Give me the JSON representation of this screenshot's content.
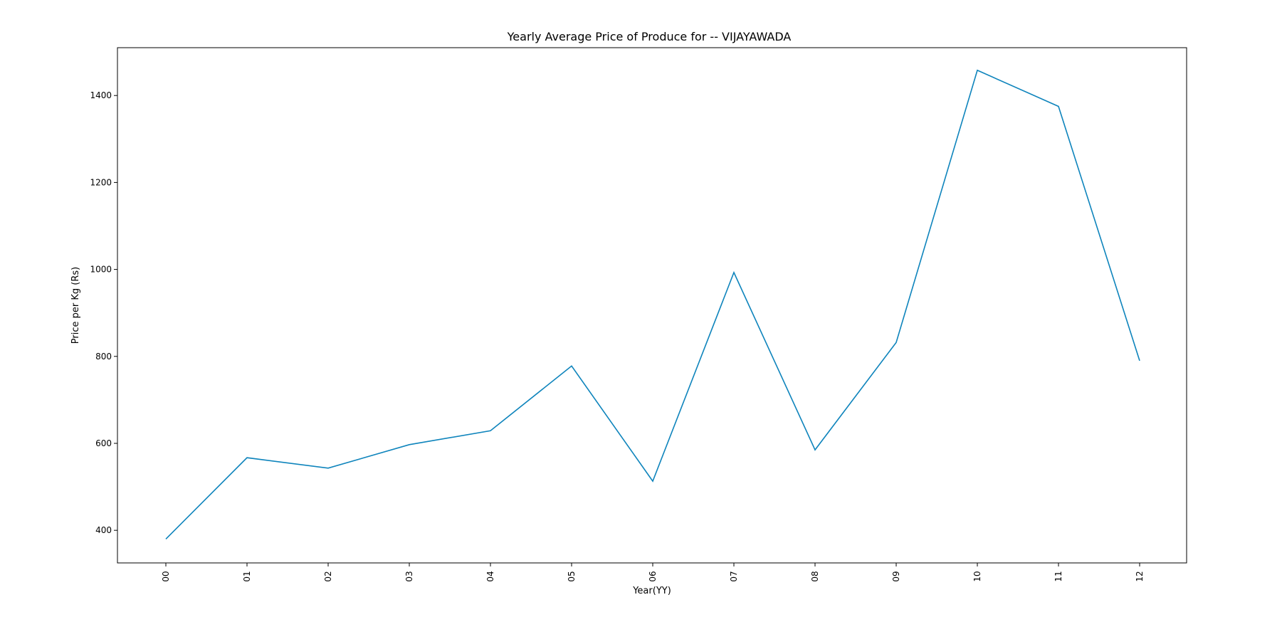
{
  "chart_data": {
    "type": "line",
    "title": "Yearly Average Price of Produce for  --  VIJAYAWADA",
    "xlabel": "Year(YY)",
    "ylabel": "Price per Kg (Rs)",
    "categories": [
      "00",
      "01",
      "02",
      "03",
      "04",
      "05",
      "06",
      "07",
      "08",
      "09",
      "10",
      "11",
      "12"
    ],
    "series": [
      {
        "values": [
          380,
          567,
          543,
          597,
          629,
          778,
          513,
          993,
          585,
          832,
          1458,
          1375,
          790
        ]
      }
    ],
    "yticks": [
      400,
      600,
      800,
      1000,
      1200,
      1400
    ],
    "ylim": [
      325,
      1510
    ],
    "grid": false,
    "line_color": "#0e84bc"
  }
}
